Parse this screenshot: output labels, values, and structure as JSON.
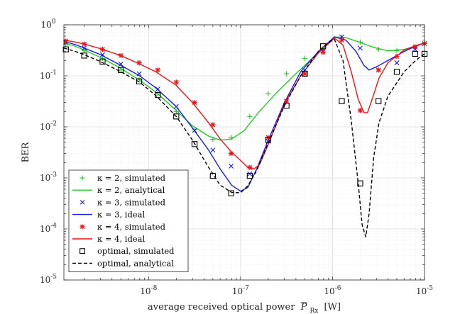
{
  "chart_data": {
    "type": "line",
    "title": "",
    "xlabel": "average received optical power",
    "xlabel_symbol": "P",
    "xlabel_subscript": "Rx",
    "xlabel_unit": "[W]",
    "ylabel": "BER",
    "xscale": "log",
    "yscale": "log",
    "xlim": [
      1.2e-09,
      1e-05
    ],
    "ylim": [
      1e-05,
      1
    ],
    "grid": true,
    "legend_position": "bottom-left",
    "x_ticks": [
      {
        "base": "10",
        "exp": "-8",
        "value": 1e-08
      },
      {
        "base": "10",
        "exp": "-7",
        "value": 1e-07
      },
      {
        "base": "10",
        "exp": "-6",
        "value": 1e-06
      },
      {
        "base": "10",
        "exp": "-5",
        "value": 1e-05
      }
    ],
    "y_ticks": [
      {
        "base": "10",
        "exp": "0",
        "value": 1
      },
      {
        "base": "10",
        "exp": "-1",
        "value": 0.1
      },
      {
        "base": "10",
        "exp": "-2",
        "value": 0.01
      },
      {
        "base": "10",
        "exp": "-3",
        "value": 0.001
      },
      {
        "base": "10",
        "exp": "-4",
        "value": 0.0001
      },
      {
        "base": "10",
        "exp": "-5",
        "value": 1e-05
      }
    ],
    "series": [
      {
        "name": "κ = 2, simulated",
        "kind": "markers",
        "marker": "plus",
        "color": "#22cc22",
        "x": [
          1.26e-09,
          2e-09,
          3.16e-09,
          5e-09,
          7.9e-09,
          1.26e-08,
          2e-08,
          3.16e-08,
          5e-08,
          7.9e-08,
          1.26e-07,
          2e-07,
          3.16e-07,
          5e-07,
          7.9e-07,
          1.26e-06,
          2e-06,
          3.16e-06,
          5e-06,
          7.9e-06,
          1e-05
        ],
        "y": [
          0.42,
          0.31,
          0.22,
          0.13,
          0.085,
          0.044,
          0.02,
          0.0088,
          0.0057,
          0.0062,
          0.016,
          0.045,
          0.11,
          0.22,
          0.34,
          0.57,
          0.46,
          0.33,
          0.31,
          0.37,
          0.44
        ]
      },
      {
        "name": "κ = 2, analytical",
        "kind": "line",
        "style": "solid",
        "color": "#22cc22",
        "x": [
          1.2e-09,
          1.6e-09,
          2e-09,
          3e-09,
          5e-09,
          8e-09,
          1.2e-08,
          2e-08,
          3e-08,
          4.5e-08,
          6e-08,
          8e-08,
          1.1e-07,
          1.6e-07,
          2.5e-07,
          4e-07,
          6e-07,
          8e-07,
          1.05e-06,
          1.4e-06,
          2e-06,
          2.8e-06,
          4e-06,
          6e-06,
          8e-06,
          1e-05
        ],
        "y": [
          0.44,
          0.38,
          0.32,
          0.23,
          0.14,
          0.082,
          0.048,
          0.021,
          0.0105,
          0.0066,
          0.0055,
          0.0058,
          0.0085,
          0.02,
          0.048,
          0.11,
          0.22,
          0.35,
          0.58,
          0.56,
          0.45,
          0.36,
          0.31,
          0.33,
          0.38,
          0.44
        ]
      },
      {
        "name": "κ = 3, simulated",
        "kind": "markers",
        "marker": "x",
        "color": "#1a1aee",
        "x": [
          1.26e-09,
          2e-09,
          3.16e-09,
          5e-09,
          7.9e-09,
          1.26e-08,
          2e-08,
          3.16e-08,
          5e-08,
          7.9e-08,
          1.26e-07,
          2e-07,
          3.16e-07,
          5e-07,
          7.9e-07,
          1.26e-06,
          2e-06,
          3.16e-06,
          5e-06,
          7.9e-06,
          1e-05
        ],
        "y": [
          0.45,
          0.35,
          0.26,
          0.17,
          0.11,
          0.055,
          0.025,
          0.0085,
          0.0035,
          0.0017,
          0.0012,
          0.0052,
          0.032,
          0.13,
          0.31,
          0.58,
          0.35,
          0.13,
          0.18,
          0.33,
          0.43
        ]
      },
      {
        "name": "κ = 3, ideal",
        "kind": "line",
        "style": "solid",
        "color": "#1a1aee",
        "x": [
          1.2e-09,
          1.6e-09,
          2e-09,
          3e-09,
          5e-09,
          8e-09,
          1.2e-08,
          2e-08,
          3e-08,
          4.5e-08,
          6e-08,
          8e-08,
          1e-07,
          1.2e-07,
          1.5e-07,
          2e-07,
          3e-07,
          4.5e-07,
          7e-07,
          1.05e-06,
          1.4e-06,
          1.8e-06,
          2.2e-06,
          2.5e-06,
          3e-06,
          4e-06,
          6e-06,
          8e-06,
          1e-05
        ],
        "y": [
          0.47,
          0.41,
          0.35,
          0.26,
          0.16,
          0.1,
          0.058,
          0.025,
          0.0095,
          0.0035,
          0.0015,
          0.00072,
          0.00055,
          0.00065,
          0.0015,
          0.0055,
          0.03,
          0.12,
          0.3,
          0.58,
          0.5,
          0.3,
          0.16,
          0.13,
          0.15,
          0.2,
          0.3,
          0.38,
          0.44
        ]
      },
      {
        "name": "κ = 4, simulated",
        "kind": "markers",
        "marker": "star",
        "color": "#ee1111",
        "x": [
          1.26e-09,
          2e-09,
          3.16e-09,
          5e-09,
          7.9e-09,
          1.26e-08,
          2e-08,
          3.16e-08,
          5e-08,
          7.9e-08,
          1.26e-07,
          2e-07,
          3.16e-07,
          5e-07,
          7.9e-07,
          1.26e-06,
          2e-06,
          3.16e-06,
          5e-06,
          7.9e-06,
          1e-05
        ],
        "y": [
          0.48,
          0.42,
          0.33,
          0.25,
          0.18,
          0.13,
          0.075,
          0.03,
          0.011,
          0.003,
          0.0016,
          0.0062,
          0.032,
          0.11,
          0.29,
          0.5,
          0.021,
          0.13,
          0.24,
          0.37,
          0.43
        ]
      },
      {
        "name": "κ = 4, ideal",
        "kind": "line",
        "style": "solid",
        "color": "#ee1111",
        "x": [
          1.2e-09,
          1.6e-09,
          2e-09,
          3e-09,
          5e-09,
          8e-09,
          1.2e-08,
          2e-08,
          3e-08,
          4.5e-08,
          6e-08,
          8e-08,
          1e-07,
          1.2e-07,
          1.4e-07,
          1.6e-07,
          2e-07,
          3e-07,
          4.5e-07,
          7e-07,
          1.05e-06,
          1.3e-06,
          1.6e-06,
          1.9e-06,
          2.2e-06,
          2.4e-06,
          2.7e-06,
          3.2e-06,
          4e-06,
          6e-06,
          8e-06,
          1e-05
        ],
        "y": [
          0.5,
          0.46,
          0.42,
          0.34,
          0.25,
          0.17,
          0.12,
          0.065,
          0.03,
          0.012,
          0.0058,
          0.0032,
          0.0022,
          0.0016,
          0.0015,
          0.0018,
          0.0045,
          0.028,
          0.1,
          0.28,
          0.55,
          0.4,
          0.12,
          0.035,
          0.019,
          0.019,
          0.035,
          0.09,
          0.18,
          0.32,
          0.39,
          0.44
        ]
      },
      {
        "name": "optimal, simulated",
        "kind": "markers",
        "marker": "square",
        "color": "#000000",
        "x": [
          1.26e-09,
          2e-09,
          3.16e-09,
          5e-09,
          7.9e-09,
          1.26e-08,
          2e-08,
          3.16e-08,
          5e-08,
          7.9e-08,
          1.26e-07,
          2e-07,
          3.16e-07,
          5e-07,
          7.9e-07,
          1.26e-06,
          2e-06,
          3.16e-06,
          5e-06,
          7.9e-06,
          1e-05
        ],
        "y": [
          0.33,
          0.25,
          0.19,
          0.13,
          0.078,
          0.042,
          0.016,
          0.0046,
          0.0011,
          0.0005,
          0.0011,
          0.0056,
          0.026,
          0.11,
          0.38,
          0.032,
          0.00078,
          0.032,
          0.12,
          0.27,
          0.27
        ]
      },
      {
        "name": "optimal, analytical",
        "kind": "line",
        "style": "dashed",
        "color": "#000000",
        "x": [
          1.2e-09,
          1.6e-09,
          2e-09,
          3e-09,
          5e-09,
          8e-09,
          1.2e-08,
          2e-08,
          3e-08,
          4.5e-08,
          6e-08,
          8e-08,
          1e-07,
          1.2e-07,
          1.5e-07,
          2e-07,
          3e-07,
          4.5e-07,
          7e-07,
          9e-07,
          1.05e-06,
          1.3e-06,
          1.6e-06,
          1.9e-06,
          2.1e-06,
          2.3e-06,
          2.5e-06,
          2.8e-06,
          3.2e-06,
          4e-06,
          6e-06,
          8e-06,
          1e-05
        ],
        "y": [
          0.35,
          0.3,
          0.26,
          0.19,
          0.12,
          0.075,
          0.041,
          0.016,
          0.0055,
          0.0016,
          0.00072,
          0.00052,
          0.00051,
          0.0007,
          0.0014,
          0.0048,
          0.026,
          0.1,
          0.3,
          0.45,
          0.52,
          0.2,
          0.013,
          0.0008,
          0.00012,
          7e-05,
          0.0002,
          0.0025,
          0.012,
          0.04,
          0.12,
          0.2,
          0.27
        ]
      }
    ]
  }
}
